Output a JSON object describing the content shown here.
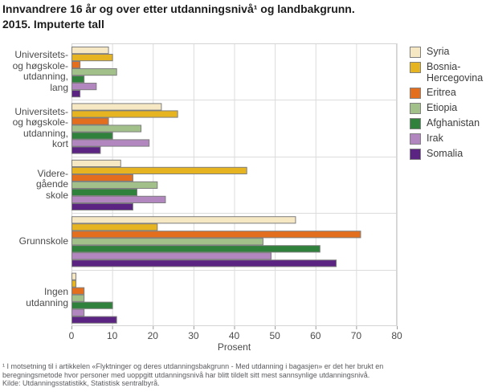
{
  "title": "Innvandrere 16 år og over etter utdanningsnivå¹ og landbakgrunn.\n2015. Imputerte tall",
  "chart_data": {
    "type": "bar",
    "orientation": "horizontal",
    "title": "Innvandrere 16 år og over etter utdanningsnivå og landbakgrunn. 2015. Imputerte tall",
    "xlabel": "Prosent",
    "xlim": [
      0,
      80
    ],
    "xticks": [
      0,
      10,
      20,
      30,
      40,
      50,
      60,
      70,
      80
    ],
    "grid": true,
    "legend_position": "right",
    "categories": [
      "Universitets- og høgskoleutdanning, lang",
      "Universitets- og høgskoleutdanning, kort",
      "Videregående skole",
      "Grunnskole",
      "Ingen utdanning"
    ],
    "category_display_lines": [
      [
        "Universitets-",
        "og høgskole-",
        "utdanning,",
        "lang"
      ],
      [
        "Universitets-",
        "og høgskole-",
        "utdanning,",
        "kort"
      ],
      [
        "Videre-",
        "gående",
        "skole"
      ],
      [
        "Grunnskole"
      ],
      [
        "Ingen",
        "utdanning"
      ]
    ],
    "series": [
      {
        "name": "Syria",
        "display_lines": [
          "Syria"
        ],
        "color": "#F7E8C4",
        "values": [
          9,
          22,
          12,
          55,
          1
        ]
      },
      {
        "name": "Bosnia-Hercegovina",
        "display_lines": [
          "Bosnia-",
          "Hercegovina"
        ],
        "color": "#E6B321",
        "values": [
          10,
          26,
          43,
          21,
          1
        ]
      },
      {
        "name": "Eritrea",
        "display_lines": [
          "Eritrea"
        ],
        "color": "#E36F1E",
        "values": [
          2,
          9,
          15,
          71,
          3
        ]
      },
      {
        "name": "Etiopia",
        "display_lines": [
          "Etiopia"
        ],
        "color": "#A2C18A",
        "values": [
          11,
          17,
          21,
          47,
          3
        ]
      },
      {
        "name": "Afghanistan",
        "display_lines": [
          "Afghanistan"
        ],
        "color": "#30813C",
        "values": [
          3,
          10,
          16,
          61,
          10
        ]
      },
      {
        "name": "Irak",
        "display_lines": [
          "Irak"
        ],
        "color": "#B287C0",
        "values": [
          6,
          19,
          23,
          49,
          3
        ]
      },
      {
        "name": "Somalia",
        "display_lines": [
          "Somalia"
        ],
        "color": "#5C2482",
        "values": [
          2,
          7,
          15,
          65,
          11
        ]
      }
    ],
    "bar_border_color": "#7E7E7E",
    "grid_color": "#DCDCDC",
    "axis_tick_color": "#9A9A9A"
  },
  "footnote": "¹ I motsetning til i artikkelen «Flyktninger og deres utdanningsbakgrunn - Med utdanning i bagasjen» er det her brukt en\nberegningsmetode hvor personer med uoppgitt utdanningsnivå har blitt tildelt sitt mest sannsynlige utdanningsnivå.",
  "source": "Kilde: Utdanningsstatistikk, Statistisk sentralbyrå."
}
